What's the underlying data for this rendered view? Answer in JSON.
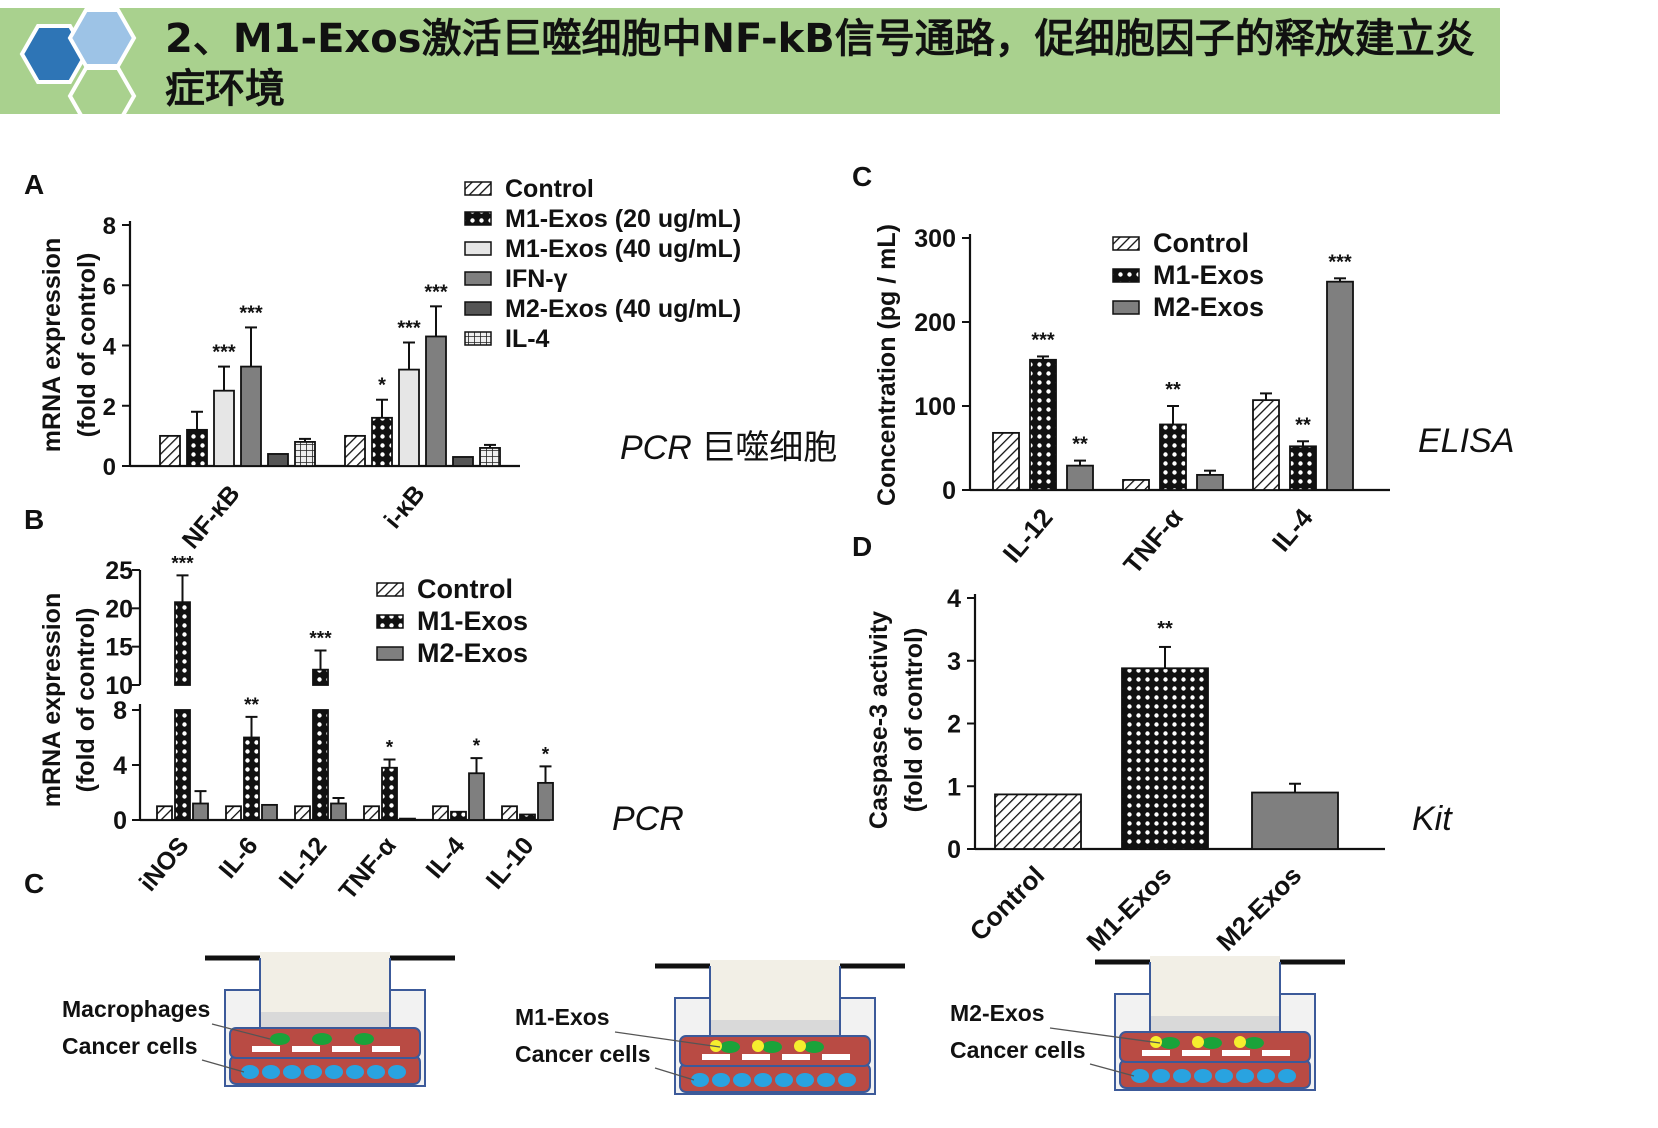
{
  "banner": {
    "title": "2、M1-Exos激活巨噬细胞中NF-kB信号通路，促细胞因子的释放建立炎症环境",
    "colors": {
      "bg": "#a9d18e",
      "hex_dark": "#2e75b6",
      "hex_light": "#9dc3e6"
    }
  },
  "notes": {
    "a_method": "PCR",
    "a_sample": "巨噬细胞",
    "b_method": "PCR",
    "c_method": "ELISA",
    "d_method": "Kit"
  },
  "chart_data": [
    {
      "panel": "A",
      "type": "bar",
      "ylabel": "mRNA expression",
      "ylabel2": "(fold of control)",
      "ylim": [
        0,
        8
      ],
      "yticks": [
        0,
        2,
        4,
        6,
        8
      ],
      "categories": [
        "NF-κB",
        "i-κB"
      ],
      "legend": [
        "Control",
        "M1-Exos (20 ug/mL)",
        "M1-Exos (40 ug/mL)",
        "IFN-γ",
        "M2-Exos (40 ug/mL)",
        "IL-4"
      ],
      "series": [
        {
          "name": "Control",
          "pattern": "hatch",
          "values": [
            1.0,
            1.0
          ],
          "errors": [
            0,
            0
          ],
          "sig": [
            "",
            ""
          ]
        },
        {
          "name": "M1-Exos (20 ug/mL)",
          "pattern": "check",
          "values": [
            1.2,
            1.6
          ],
          "errors": [
            0.6,
            0.6
          ],
          "sig": [
            "",
            "*"
          ]
        },
        {
          "name": "M1-Exos (40 ug/mL)",
          "pattern": "light",
          "values": [
            2.5,
            3.2
          ],
          "errors": [
            0.8,
            0.9
          ],
          "sig": [
            "***",
            "***"
          ]
        },
        {
          "name": "IFN-γ",
          "pattern": "gray",
          "values": [
            3.3,
            4.3
          ],
          "errors": [
            1.3,
            1.0
          ],
          "sig": [
            "***",
            "***"
          ]
        },
        {
          "name": "M2-Exos (40 ug/mL)",
          "pattern": "dark",
          "values": [
            0.4,
            0.3
          ],
          "errors": [
            0,
            0
          ],
          "sig": [
            "",
            ""
          ]
        },
        {
          "name": "IL-4",
          "pattern": "grid",
          "values": [
            0.8,
            0.6
          ],
          "errors": [
            0.1,
            0.1
          ],
          "sig": [
            "",
            ""
          ]
        }
      ]
    },
    {
      "panel": "B",
      "type": "bar",
      "ylabel": "mRNA expression",
      "ylabel2": "(fold of control)",
      "ylim_lower": [
        0,
        8
      ],
      "ylim_upper": [
        10,
        25
      ],
      "yticks_lower": [
        0,
        4,
        8
      ],
      "yticks_upper": [
        10,
        15,
        20,
        25
      ],
      "categories": [
        "iNOS",
        "IL-6",
        "IL-12",
        "TNF-α",
        "IL-4",
        "IL-10"
      ],
      "legend": [
        "Control",
        "M1-Exos",
        "M2-Exos"
      ],
      "series": [
        {
          "name": "Control",
          "pattern": "hatch",
          "values": [
            1.0,
            1.0,
            1.0,
            1.0,
            1.0,
            1.0
          ],
          "errors": [
            0,
            0,
            0,
            0,
            0,
            0
          ],
          "sig": [
            "",
            "",
            "",
            "",
            "",
            ""
          ]
        },
        {
          "name": "M1-Exos",
          "pattern": "check",
          "values": [
            20.8,
            6.0,
            12.0,
            3.8,
            0.6,
            0.4
          ],
          "errors": [
            3.5,
            1.5,
            2.5,
            0.6,
            0,
            0
          ],
          "sig": [
            "***",
            "**",
            "***",
            "*",
            "",
            ""
          ]
        },
        {
          "name": "M2-Exos",
          "pattern": "gray",
          "values": [
            1.2,
            1.1,
            1.2,
            0.1,
            3.4,
            2.7
          ],
          "errors": [
            0.9,
            0,
            0.4,
            0,
            1.1,
            1.2
          ],
          "sig": [
            "",
            "",
            "",
            "",
            "*",
            "*"
          ]
        }
      ]
    },
    {
      "panel": "C",
      "type": "bar",
      "ylabel": "Concentration (pg / mL)",
      "ylim": [
        0,
        300
      ],
      "yticks": [
        0,
        100,
        200,
        300
      ],
      "categories": [
        "IL-12",
        "TNF-α",
        "IL-4"
      ],
      "legend": [
        "Control",
        "M1-Exos",
        "M2-Exos"
      ],
      "series": [
        {
          "name": "Control",
          "pattern": "hatch",
          "values": [
            68,
            12,
            107
          ],
          "errors": [
            0,
            0,
            8
          ],
          "sig": [
            "",
            "",
            ""
          ]
        },
        {
          "name": "M1-Exos",
          "pattern": "check",
          "values": [
            155,
            78,
            52
          ],
          "errors": [
            4,
            22,
            6
          ],
          "sig": [
            "***",
            "**",
            "**"
          ]
        },
        {
          "name": "M2-Exos",
          "pattern": "gray",
          "values": [
            29,
            18,
            248
          ],
          "errors": [
            6,
            5,
            4
          ],
          "sig": [
            "**",
            "",
            "***"
          ]
        }
      ]
    },
    {
      "panel": "D",
      "type": "bar",
      "ylabel": "Caspase-3 activity",
      "ylabel2": "(fold of  control)",
      "ylim": [
        0,
        4
      ],
      "yticks": [
        0,
        1,
        2,
        3,
        4
      ],
      "categories": [
        "Control",
        "M1-Exos",
        "M2-Exos"
      ],
      "values": [
        0.87,
        2.88,
        0.9
      ],
      "errors": [
        0,
        0.34,
        0.14
      ],
      "patterns": [
        "hatch",
        "check",
        "gray"
      ],
      "sig": [
        "",
        "**",
        ""
      ]
    }
  ],
  "schematic": {
    "panel": "C",
    "wells": [
      {
        "labels": [
          "Macrophages",
          "Cancer cells"
        ]
      },
      {
        "labels": [
          "M1-Exos",
          "Cancer cells"
        ]
      },
      {
        "labels": [
          "M2-Exos",
          "Cancer cells"
        ]
      }
    ],
    "colors": {
      "medium": "#b94b44",
      "insert": "#efefe5",
      "cancer": "#29a3e0",
      "macrophage": "#1aa33a",
      "exosome": "#f5ee2e"
    }
  }
}
